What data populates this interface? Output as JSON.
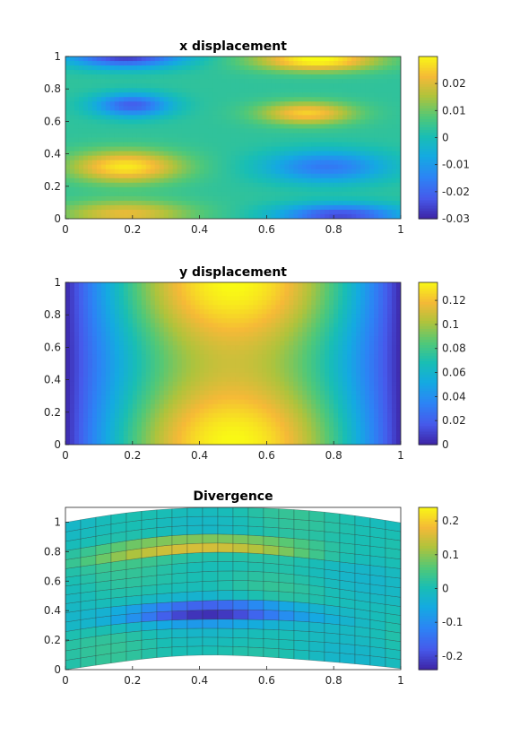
{
  "chart_data": [
    {
      "type": "heatmap",
      "title": "x displacement",
      "xlim": [
        0,
        1
      ],
      "ylim": [
        0,
        1
      ],
      "x_ticks": [
        "0",
        "0.2",
        "0.4",
        "0.6",
        "0.8",
        "1"
      ],
      "y_ticks": [
        "0",
        "0.2",
        "0.4",
        "0.6",
        "0.8",
        "1"
      ],
      "colorbar": {
        "range": [
          -0.03,
          0.03
        ],
        "ticks": [
          "0.02",
          "0.01",
          "0",
          "-0.01",
          "-0.02",
          "-0.03"
        ],
        "tick_values": [
          0.02,
          0.01,
          0,
          -0.01,
          -0.02,
          -0.03
        ]
      },
      "colormap": "parula",
      "features": [
        {
          "x": 0.18,
          "y": 0.32,
          "value": 0.025,
          "sx": 0.12,
          "sy": 0.07
        },
        {
          "x": 0.18,
          "y": 0.03,
          "value": 0.018,
          "sx": 0.14,
          "sy": 0.06
        },
        {
          "x": 0.18,
          "y": 1.0,
          "value": -0.03,
          "sx": 0.12,
          "sy": 0.05
        },
        {
          "x": 0.2,
          "y": 0.7,
          "value": -0.025,
          "sx": 0.08,
          "sy": 0.05
        },
        {
          "x": 0.75,
          "y": 0.98,
          "value": 0.028,
          "sx": 0.13,
          "sy": 0.05
        },
        {
          "x": 0.72,
          "y": 0.65,
          "value": 0.022,
          "sx": 0.1,
          "sy": 0.05
        },
        {
          "x": 0.78,
          "y": 0.32,
          "value": -0.02,
          "sx": 0.13,
          "sy": 0.07
        },
        {
          "x": 0.82,
          "y": 0.02,
          "value": -0.028,
          "sx": 0.13,
          "sy": 0.05
        }
      ]
    },
    {
      "type": "heatmap",
      "title": "y displacement",
      "xlim": [
        0,
        1
      ],
      "ylim": [
        0,
        1
      ],
      "x_ticks": [
        "0",
        "0.2",
        "0.4",
        "0.6",
        "0.8",
        "1"
      ],
      "y_ticks": [
        "0",
        "0.2",
        "0.4",
        "0.6",
        "0.8",
        "1"
      ],
      "colorbar": {
        "range": [
          0,
          0.135
        ],
        "ticks": [
          "0.12",
          "0.1",
          "0.08",
          "0.06",
          "0.04",
          "0.02",
          "0"
        ],
        "tick_values": [
          0.12,
          0.1,
          0.08,
          0.06,
          0.04,
          0.02,
          0
        ]
      },
      "colormap": "parula",
      "value_range": [
        0.0,
        0.135
      ]
    },
    {
      "type": "heatmap",
      "title": "Divergence",
      "xlim": [
        0,
        1
      ],
      "ylim": [
        0,
        1.1
      ],
      "x_ticks": [
        "0",
        "0.2",
        "0.4",
        "0.6",
        "0.8",
        "1"
      ],
      "y_ticks": [
        "0",
        "0.2",
        "0.4",
        "0.6",
        "0.8",
        "1"
      ],
      "colorbar": {
        "range": [
          -0.24,
          0.24
        ],
        "ticks": [
          "0.2",
          "0.1",
          "0",
          "-0.1",
          "-0.2"
        ],
        "tick_values": [
          0.2,
          0.1,
          0,
          -0.1,
          -0.2
        ]
      },
      "colormap": "parula",
      "mesh": "deformed",
      "features": [
        {
          "x": 0.45,
          "y": 0.82,
          "value": 0.18
        },
        {
          "x": 0.45,
          "y": 0.42,
          "value": -0.22
        }
      ]
    }
  ]
}
